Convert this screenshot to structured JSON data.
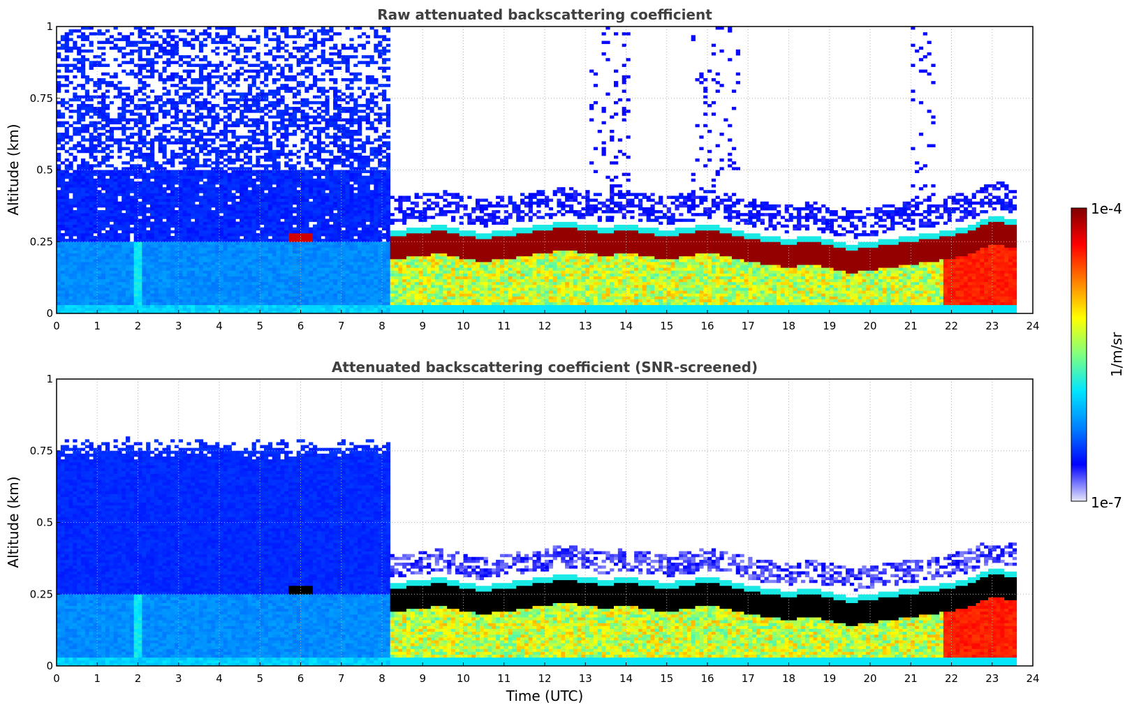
{
  "chart_data": [
    {
      "type": "heatmap",
      "title": "Raw attenuated backscattering coefficient",
      "xlabel": "",
      "ylabel": "Altitude (km)",
      "xlim": [
        0,
        24
      ],
      "ylim": [
        0,
        1
      ],
      "xticks": [
        0,
        1,
        2,
        3,
        4,
        5,
        6,
        7,
        8,
        9,
        10,
        11,
        12,
        13,
        14,
        15,
        16,
        17,
        18,
        19,
        20,
        21,
        22,
        23,
        24
      ],
      "yticks": [
        {
          "value": 0,
          "label": "0"
        },
        {
          "value": 0.25,
          "label": "0.25"
        },
        {
          "value": 0.5,
          "label": "0.5"
        },
        {
          "value": 0.75,
          "label": "0.75"
        },
        {
          "value": 1,
          "label": "1"
        }
      ],
      "grid": true,
      "screened": false,
      "data_end_time": 23.65,
      "boundary_layer_top_km": [
        {
          "t": 8.2,
          "h": 0.29
        },
        {
          "t": 9,
          "h": 0.3
        },
        {
          "t": 9.5,
          "h": 0.31
        },
        {
          "t": 10,
          "h": 0.29
        },
        {
          "t": 10.5,
          "h": 0.28
        },
        {
          "t": 11,
          "h": 0.29
        },
        {
          "t": 11.5,
          "h": 0.3
        },
        {
          "t": 12,
          "h": 0.31
        },
        {
          "t": 12.5,
          "h": 0.32
        },
        {
          "t": 13,
          "h": 0.31
        },
        {
          "t": 13.5,
          "h": 0.3
        },
        {
          "t": 14,
          "h": 0.31
        },
        {
          "t": 14.5,
          "h": 0.3
        },
        {
          "t": 15,
          "h": 0.29
        },
        {
          "t": 15.5,
          "h": 0.3
        },
        {
          "t": 16,
          "h": 0.31
        },
        {
          "t": 16.5,
          "h": 0.3
        },
        {
          "t": 17,
          "h": 0.28
        },
        {
          "t": 17.5,
          "h": 0.27
        },
        {
          "t": 18,
          "h": 0.26
        },
        {
          "t": 18.5,
          "h": 0.27
        },
        {
          "t": 19,
          "h": 0.26
        },
        {
          "t": 19.5,
          "h": 0.24
        },
        {
          "t": 20,
          "h": 0.25
        },
        {
          "t": 20.5,
          "h": 0.26
        },
        {
          "t": 21,
          "h": 0.27
        },
        {
          "t": 21.5,
          "h": 0.28
        },
        {
          "t": 22,
          "h": 0.29
        },
        {
          "t": 22.5,
          "h": 0.31
        },
        {
          "t": 23,
          "h": 0.34
        },
        {
          "t": 23.65,
          "h": 0.33
        }
      ]
    },
    {
      "type": "heatmap",
      "title": "Attenuated backscattering coefficient (SNR-screened)",
      "xlabel": "Time (UTC)",
      "ylabel": "Altitude (km)",
      "xlim": [
        0,
        24
      ],
      "ylim": [
        0,
        1
      ],
      "xticks": [
        0,
        1,
        2,
        3,
        4,
        5,
        6,
        7,
        8,
        9,
        10,
        11,
        12,
        13,
        14,
        15,
        16,
        17,
        18,
        19,
        20,
        21,
        22,
        23,
        24
      ],
      "yticks": [
        {
          "value": 0,
          "label": "0"
        },
        {
          "value": 0.25,
          "label": "0.25"
        },
        {
          "value": 0.5,
          "label": "0.5"
        },
        {
          "value": 0.75,
          "label": "0.75"
        },
        {
          "value": 1,
          "label": "1"
        }
      ],
      "grid": true,
      "screened": true,
      "data_end_time": 23.65,
      "boundary_layer_top_km": [
        {
          "t": 8.2,
          "h": 0.29
        },
        {
          "t": 9,
          "h": 0.3
        },
        {
          "t": 9.5,
          "h": 0.31
        },
        {
          "t": 10,
          "h": 0.29
        },
        {
          "t": 10.5,
          "h": 0.28
        },
        {
          "t": 11,
          "h": 0.29
        },
        {
          "t": 11.5,
          "h": 0.3
        },
        {
          "t": 12,
          "h": 0.31
        },
        {
          "t": 12.5,
          "h": 0.32
        },
        {
          "t": 13,
          "h": 0.31
        },
        {
          "t": 13.5,
          "h": 0.3
        },
        {
          "t": 14,
          "h": 0.31
        },
        {
          "t": 14.5,
          "h": 0.3
        },
        {
          "t": 15,
          "h": 0.29
        },
        {
          "t": 15.5,
          "h": 0.3
        },
        {
          "t": 16,
          "h": 0.31
        },
        {
          "t": 16.5,
          "h": 0.3
        },
        {
          "t": 17,
          "h": 0.28
        },
        {
          "t": 17.5,
          "h": 0.27
        },
        {
          "t": 18,
          "h": 0.26
        },
        {
          "t": 18.5,
          "h": 0.27
        },
        {
          "t": 19,
          "h": 0.26
        },
        {
          "t": 19.5,
          "h": 0.24
        },
        {
          "t": 20,
          "h": 0.25
        },
        {
          "t": 20.5,
          "h": 0.26
        },
        {
          "t": 21,
          "h": 0.27
        },
        {
          "t": 21.5,
          "h": 0.28
        },
        {
          "t": 22,
          "h": 0.29
        },
        {
          "t": 22.5,
          "h": 0.31
        },
        {
          "t": 23,
          "h": 0.34
        },
        {
          "t": 23.65,
          "h": 0.33
        }
      ]
    }
  ],
  "colorbar": {
    "label": "1/m/sr",
    "min_label": "1e-7",
    "max_label": "1e-4",
    "colormap": "jet",
    "stops": [
      "#e8e8fa",
      "#0000ff",
      "#0080ff",
      "#00e5ff",
      "#7fff80",
      "#ffff00",
      "#ff8000",
      "#ff0000",
      "#800000"
    ]
  },
  "colors": {
    "background": "#ffffff",
    "grid": "#b0b0b0",
    "title": "#404040",
    "saturated_screened": "#000000"
  }
}
